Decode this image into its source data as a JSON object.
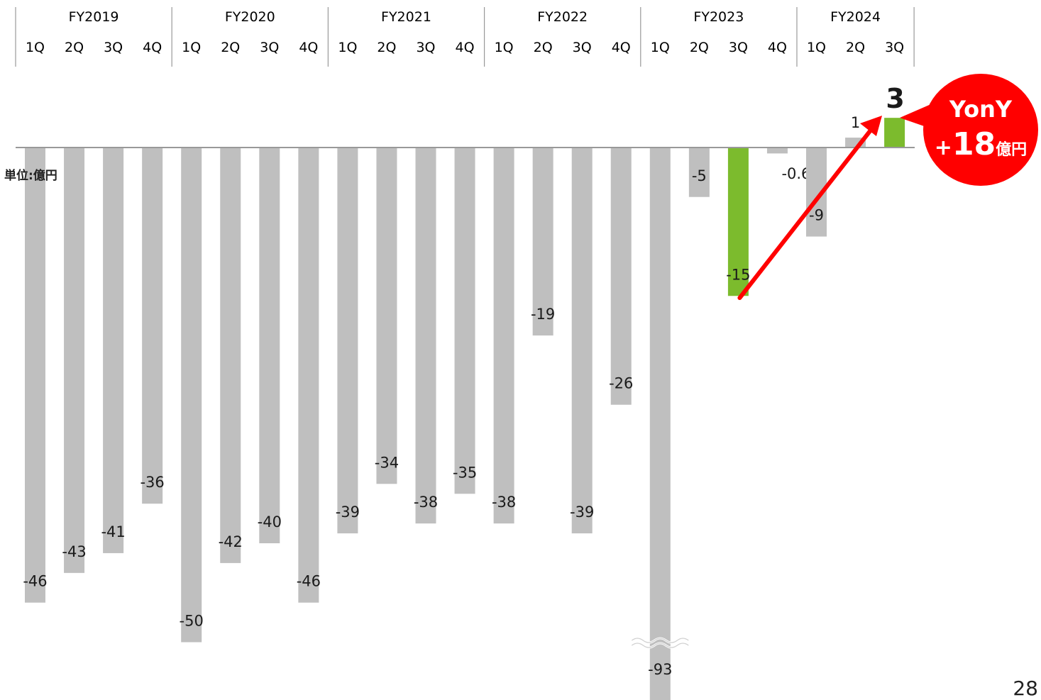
{
  "chart_data": {
    "type": "bar",
    "unit_label": "単位:億円",
    "fiscal_years": [
      "FY2019",
      "FY2020",
      "FY2021",
      "FY2022",
      "FY2023",
      "FY2024"
    ],
    "quarters": [
      "1Q",
      "2Q",
      "3Q",
      "4Q",
      "1Q",
      "2Q",
      "3Q",
      "4Q",
      "1Q",
      "2Q",
      "3Q",
      "4Q",
      "1Q",
      "2Q",
      "3Q",
      "4Q",
      "1Q",
      "2Q",
      "3Q",
      "4Q",
      "1Q",
      "2Q",
      "3Q"
    ],
    "values": [
      -46,
      -43,
      -41,
      -36,
      -50,
      -42,
      -40,
      -46,
      -39,
      -34,
      -38,
      -35,
      -38,
      -19,
      -39,
      -26,
      -93,
      -5,
      -15,
      -0.6,
      -9,
      1,
      3
    ],
    "labels": [
      "-46",
      "-43",
      "-41",
      "-36",
      "-50",
      "-42",
      "-40",
      "-46",
      "-39",
      "-34",
      "-38",
      "-35",
      "-38",
      "-19",
      "-39",
      "-26",
      "-93",
      "-5",
      "-15",
      "-0.6",
      "-9",
      "1",
      "3"
    ],
    "highlighted": [
      "FY2023 3Q",
      "FY2024 3Q"
    ],
    "broken_axis_bar": "FY2023 1Q",
    "colors": {
      "default_bar": "#bfbfbf",
      "highlight_bar": "#7cbb2d",
      "arrow": "#ff0000",
      "badge": "#ff0000",
      "badge_text": "#ffffff",
      "axis": "#999999"
    },
    "callout": {
      "line1": "YonY",
      "line2_prefix": "+",
      "line2_value": "18",
      "line2_unit": "億円"
    }
  },
  "page_number": "28"
}
